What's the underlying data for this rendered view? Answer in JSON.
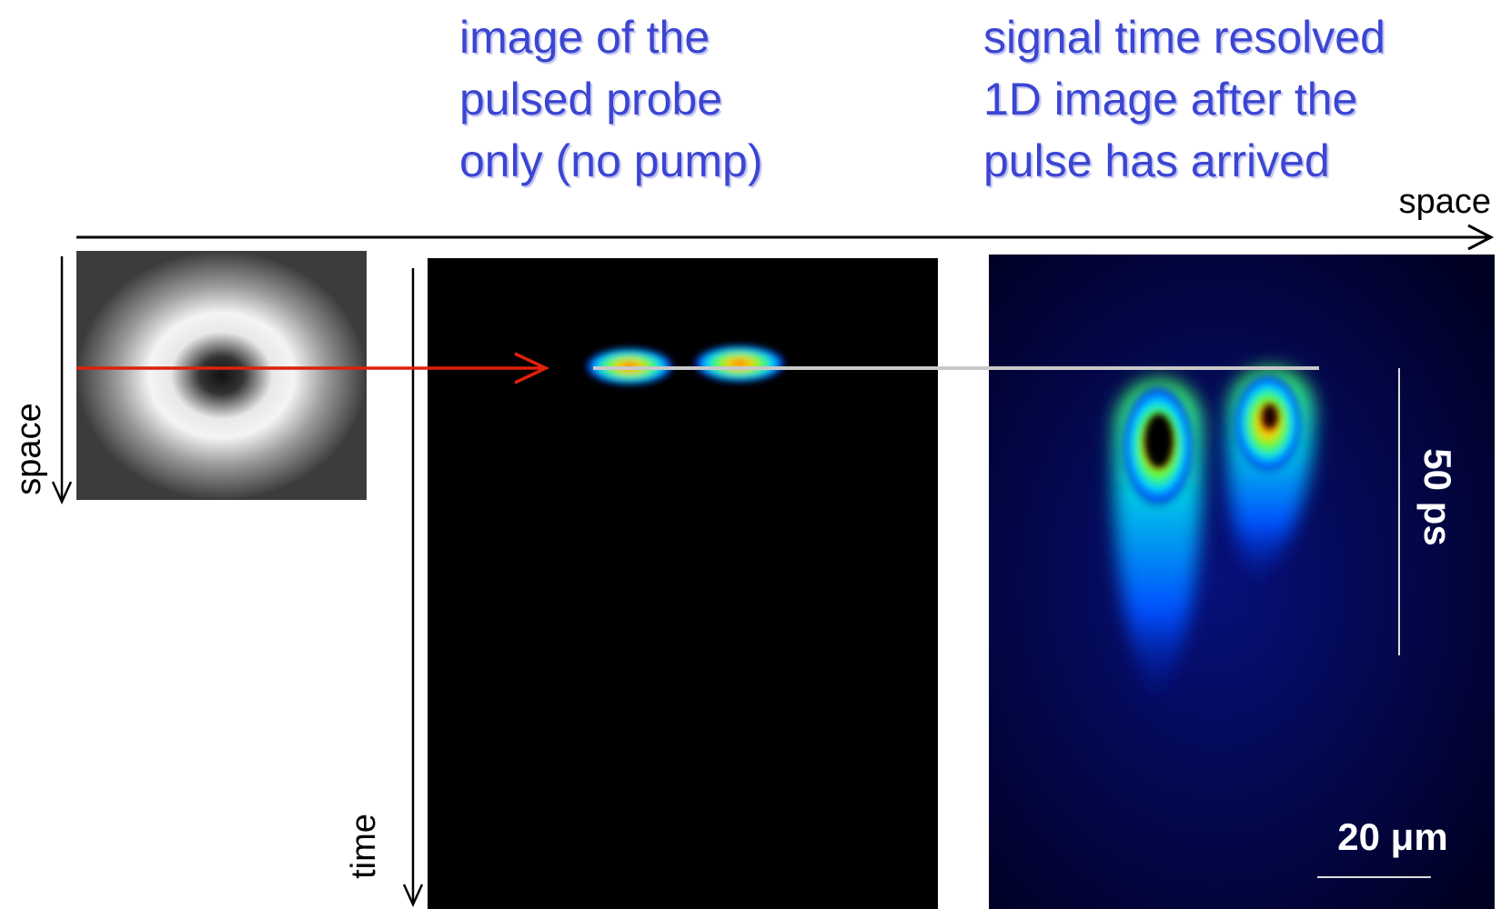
{
  "labels": {
    "probe_title": [
      "image of the",
      "pulsed probe",
      "only (no pump)"
    ],
    "signal_title": [
      "signal time resolved",
      "1D image after the",
      "pulse has arrived"
    ],
    "space_horizontal": "space",
    "space_vertical": "space",
    "time": "time",
    "time_scale": "50 ps",
    "space_scale": "20 μm"
  }
}
